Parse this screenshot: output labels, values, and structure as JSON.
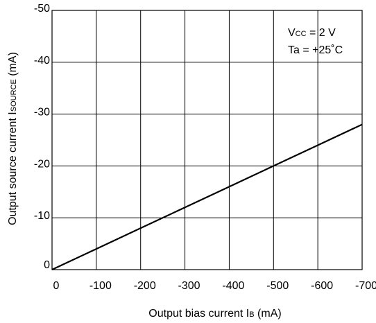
{
  "chart_data": {
    "type": "line",
    "xlabel_main": "Output bias current I",
    "xlabel_sub": "B",
    "xlabel_unit": " (mA)",
    "ylabel_main": "Output source current I",
    "ylabel_sub": "SOURCE",
    "ylabel_unit": " (mA)",
    "x_ticks": [
      "0",
      "-100",
      "-200",
      "-300",
      "-400",
      "-500",
      "-600",
      "-700"
    ],
    "y_ticks": [
      "0",
      "-10",
      "-20",
      "-30",
      "-40",
      "-50"
    ],
    "xlim": [
      0,
      -700
    ],
    "ylim": [
      0,
      -50
    ],
    "grid": true,
    "annotation": {
      "line1_main": "V",
      "line1_sub": "CC",
      "line1_rest": " = 2 V",
      "line2": "Ta = +25˚C",
      "placement": "top-right"
    },
    "series": [
      {
        "x": [
          0,
          -100,
          -200,
          -300,
          -400,
          -500,
          -600,
          -700
        ],
        "y": [
          0,
          -4,
          -8,
          -12,
          -16,
          -20,
          -24,
          -28
        ]
      }
    ]
  }
}
